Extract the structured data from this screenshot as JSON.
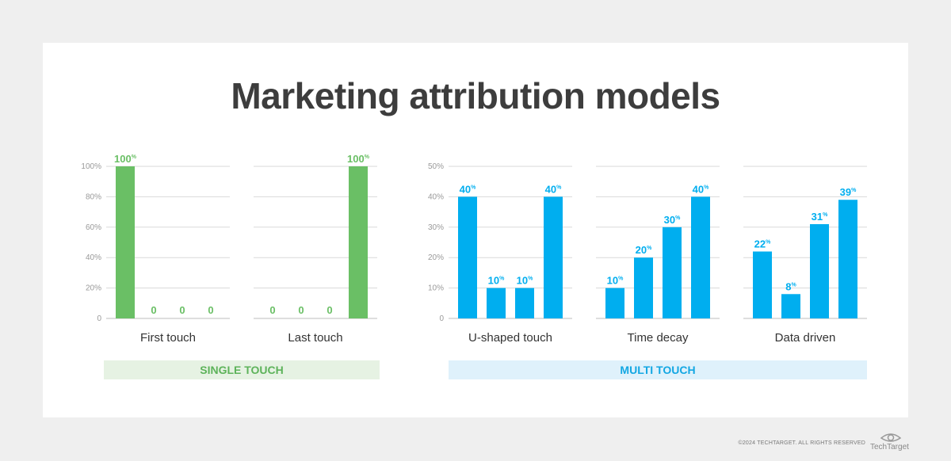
{
  "title": "Marketing attribution models",
  "groups": {
    "single": "SINGLE TOUCH",
    "multi": "MULTI TOUCH"
  },
  "footer": "©2024 TECHTARGET. ALL RIGHTS RESERVED",
  "logo_text": "TechTarget",
  "colors": {
    "single": "#6abf65",
    "multi": "#00aeef",
    "grid": "#d9d9d9",
    "tick": "#999999"
  },
  "chart_data": [
    {
      "type": "bar",
      "name": "First touch",
      "group": "single",
      "categories": [
        "1",
        "2",
        "3",
        "4"
      ],
      "values": [
        100,
        0,
        0,
        0
      ],
      "labels": [
        "100%",
        "0",
        "0",
        "0"
      ],
      "ylim": [
        0,
        100
      ],
      "yticks": [
        0,
        20,
        40,
        60,
        80,
        100
      ],
      "ytick_labels": [
        "0",
        "20%",
        "40%",
        "60%",
        "80%",
        "100%"
      ]
    },
    {
      "type": "bar",
      "name": "Last touch",
      "group": "single",
      "categories": [
        "1",
        "2",
        "3",
        "4"
      ],
      "values": [
        0,
        0,
        0,
        100
      ],
      "labels": [
        "0",
        "0",
        "0",
        "100%"
      ],
      "ylim": [
        0,
        100
      ]
    },
    {
      "type": "bar",
      "name": "U-shaped touch",
      "group": "multi",
      "categories": [
        "1",
        "2",
        "3",
        "4"
      ],
      "values": [
        40,
        10,
        10,
        40
      ],
      "labels": [
        "40%",
        "10%",
        "10%",
        "40%"
      ],
      "ylim": [
        0,
        50
      ],
      "yticks": [
        0,
        10,
        20,
        30,
        40,
        50
      ],
      "ytick_labels": [
        "0",
        "10%",
        "20%",
        "30%",
        "40%",
        "50%"
      ]
    },
    {
      "type": "bar",
      "name": "Time decay",
      "group": "multi",
      "categories": [
        "1",
        "2",
        "3",
        "4"
      ],
      "values": [
        10,
        20,
        30,
        40
      ],
      "labels": [
        "10%",
        "20%",
        "30%",
        "40%"
      ],
      "ylim": [
        0,
        50
      ]
    },
    {
      "type": "bar",
      "name": "Data driven",
      "group": "multi",
      "categories": [
        "1",
        "2",
        "3",
        "4"
      ],
      "values": [
        22,
        8,
        31,
        39
      ],
      "labels": [
        "22%",
        "8%",
        "31%",
        "39%"
      ],
      "ylim": [
        0,
        50
      ]
    }
  ]
}
